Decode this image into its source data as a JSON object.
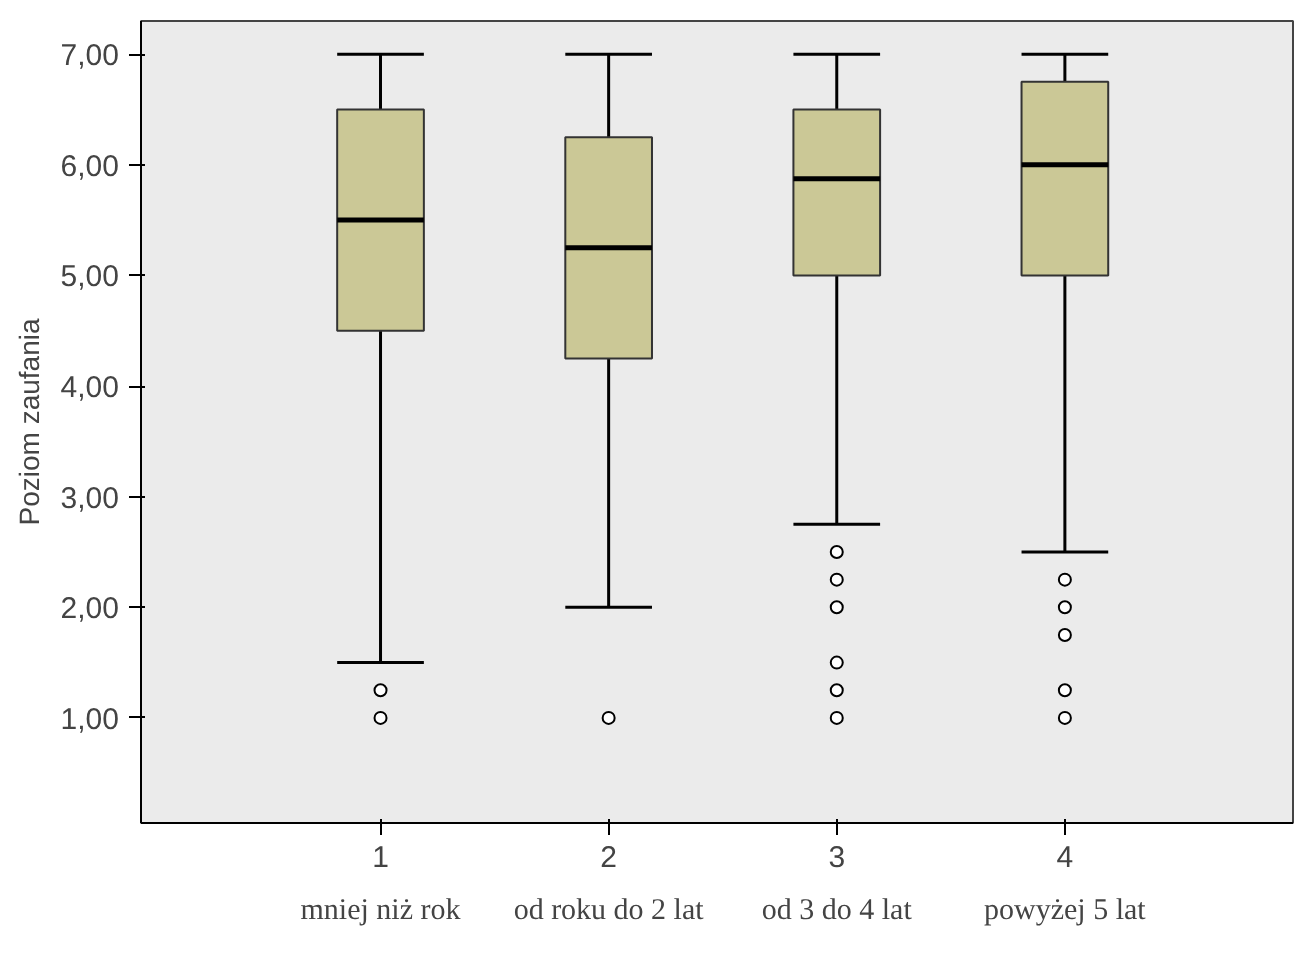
{
  "chart_data": {
    "type": "box",
    "ylabel": "Poziom zaufania",
    "categories": [
      "1",
      "2",
      "3",
      "4"
    ],
    "boxes": [
      {
        "low": 1.5,
        "q1": 4.5,
        "median": 5.5,
        "q3": 6.5,
        "high": 7.0,
        "outliers": [
          1.25,
          1.0
        ]
      },
      {
        "low": 2.0,
        "q1": 4.25,
        "median": 5.25,
        "q3": 6.25,
        "high": 7.0,
        "outliers": [
          1.0
        ]
      },
      {
        "low": 2.75,
        "q1": 5.0,
        "median": 5.875,
        "q3": 6.5,
        "high": 7.0,
        "outliers": [
          2.5,
          2.25,
          2.0,
          1.5,
          1.25,
          1.0
        ]
      },
      {
        "low": 2.5,
        "q1": 5.0,
        "median": 6.0,
        "q3": 6.75,
        "high": 7.0,
        "outliers": [
          2.25,
          2.0,
          1.75,
          1.25,
          1.0
        ]
      }
    ],
    "color": "#cbc896",
    "ylim": [
      0.05,
      7.3
    ],
    "yticks": [
      {
        "value": 1,
        "label": "1,00"
      },
      {
        "value": 2,
        "label": "2,00"
      },
      {
        "value": 3,
        "label": "3,00"
      },
      {
        "value": 4,
        "label": "4,00"
      },
      {
        "value": 5,
        "label": "5,00"
      },
      {
        "value": 6,
        "label": "6,00"
      },
      {
        "value": 7,
        "label": "7,00"
      }
    ],
    "annotations": [
      "mniej niż rok",
      "od roku do 2 lat",
      "od 3 do 4 lat",
      "powyżej 5 lat"
    ],
    "grid": false
  }
}
